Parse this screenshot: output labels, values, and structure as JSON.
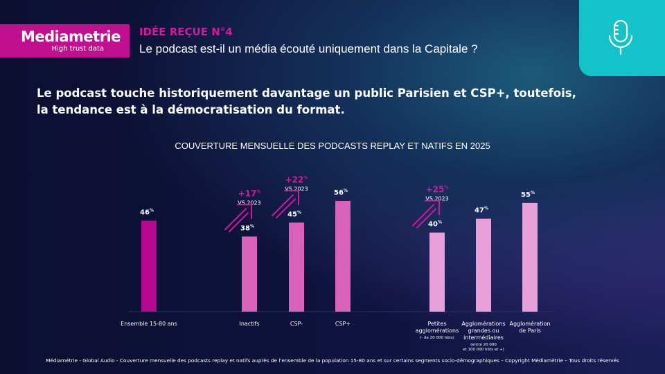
{
  "brand": {
    "name": "Mediametrie",
    "tagline": "High trust data"
  },
  "header": {
    "kicker": "IDÉE REÇUE N°4",
    "question": "Le podcast est-il un média écouté uniquement dans la Capitale ?"
  },
  "headline": [
    "Le podcast touche historiquement davantage un public Parisien et CSP+, toutefois,",
    "la tendance est à la démocratisation du format."
  ],
  "icons": [
    "microphone-icon",
    "arrow-up-right-icon"
  ],
  "chart_data": {
    "type": "bar",
    "title": "COUVERTURE MENSUELLE DES PODCASTS REPLAY ET NATIFS EN 2025",
    "unit": "%",
    "ylim": [
      0,
      60
    ],
    "grid": false,
    "categories": [
      {
        "lines": [
          "Ensemble 15-80 ans"
        ],
        "sub": []
      },
      {
        "lines": [
          "Inactifs"
        ],
        "sub": []
      },
      {
        "lines": [
          "CSP-"
        ],
        "sub": []
      },
      {
        "lines": [
          "CSP+"
        ],
        "sub": []
      },
      {
        "lines": [
          "Petites",
          "agglomérations"
        ],
        "sub": [
          "(- de 20 000 hbts)"
        ]
      },
      {
        "lines": [
          "Agglomérations",
          "grandes ou",
          "intermédiaires"
        ],
        "sub": [
          "(entre 20 000",
          "et 100 000 hbts et +)"
        ]
      },
      {
        "lines": [
          "Agglomération",
          "de Paris"
        ],
        "sub": []
      }
    ],
    "values": [
      46,
      38,
      45,
      56,
      40,
      47,
      55
    ],
    "colors": [
      "#b8078f",
      "#d862b9",
      "#d862b9",
      "#d862b9",
      "#e8a0d8",
      "#e8a0d8",
      "#e8a0d8"
    ],
    "annotations": [
      {
        "category": 1,
        "delta": "+17%",
        "label": "VS 2023"
      },
      {
        "category": 2,
        "delta": "+22%",
        "label": "VS 2023"
      },
      {
        "category": 4,
        "delta": "+25%",
        "label": "VS 2023"
      }
    ],
    "accent": "#d21a9e"
  },
  "footer": "Médiamétrie - Global Audio - Couverture mensuelle des podcasts replay et natifs auprès de l'ensemble de la population 15-80 ans et sur certains segments socio-démographiques – Copyright Médiamétrie – Tous droits réservés"
}
